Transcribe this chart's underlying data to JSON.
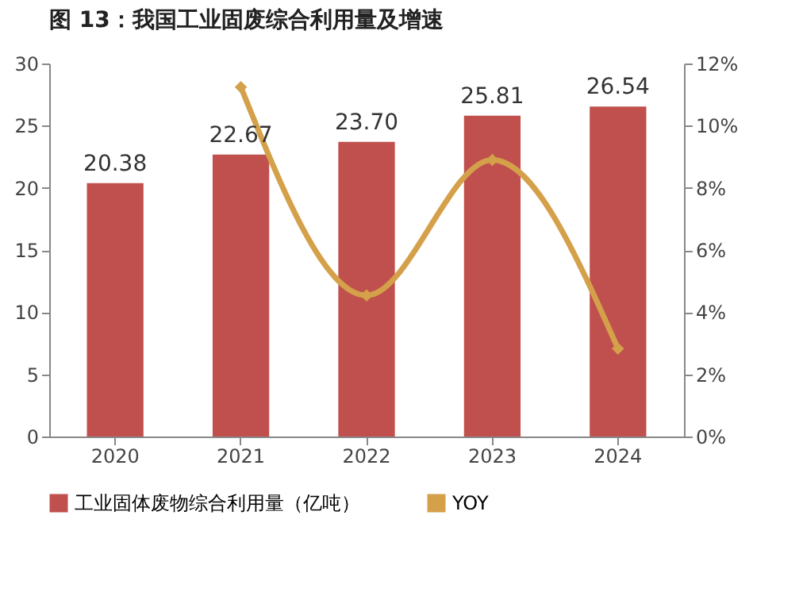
{
  "chart_data": {
    "type": "bar",
    "title": "图 13：我国工业固废综合利用量及增速",
    "categories": [
      "2020",
      "2021",
      "2022",
      "2023",
      "2024"
    ],
    "series": [
      {
        "name": "工业固体废物综合利用量（亿吨）",
        "color": "#c0504d",
        "values": [
          20.38,
          22.67,
          23.7,
          25.81,
          26.54
        ],
        "value_labels": [
          "20.38",
          "22.67",
          "23.70",
          "25.81",
          "26.54"
        ]
      },
      {
        "name": "YOY",
        "type": "line",
        "axis": "y2",
        "color": "#d4a04a",
        "values": [
          null,
          11.24,
          4.54,
          8.9,
          2.83
        ]
      }
    ],
    "ylim": [
      0,
      30
    ],
    "yticks": [
      0,
      5,
      10,
      15,
      20,
      25,
      30
    ],
    "y2lim": [
      0,
      12
    ],
    "y2ticks": [
      {
        "value": 0,
        "label": "0%"
      },
      {
        "value": 2,
        "label": "2%"
      },
      {
        "value": 4,
        "label": "4%"
      },
      {
        "value": 6,
        "label": "6%"
      },
      {
        "value": 8,
        "label": "8%"
      },
      {
        "value": 10,
        "label": "10%"
      },
      {
        "value": 12,
        "label": "12%"
      }
    ],
    "marker": "diamond",
    "line_style": "solid",
    "legend": "bottom"
  }
}
